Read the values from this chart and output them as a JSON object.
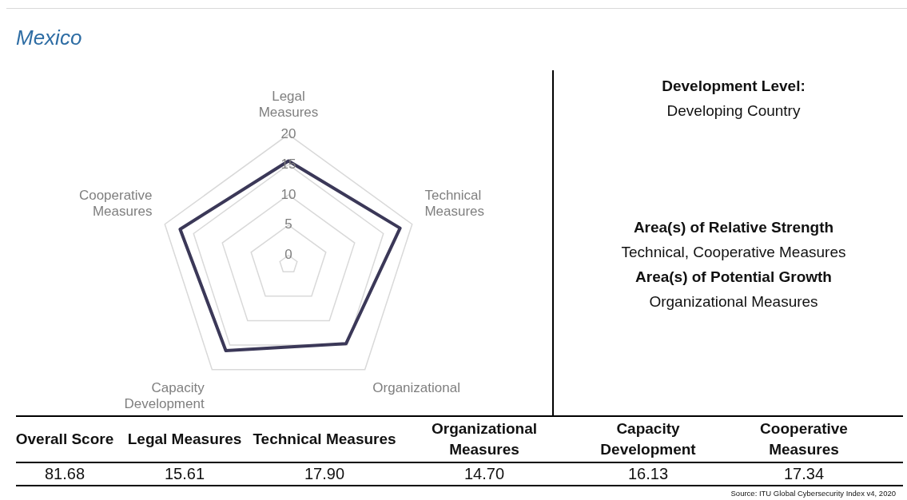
{
  "chart_data": {
    "type": "radar",
    "title": "Mexico",
    "categories": [
      "Legal Measures",
      "Technical Measures",
      "Organizational",
      "Capacity Development",
      "Cooperative Measures"
    ],
    "series": [
      {
        "color": "#3b3858",
        "values": [
          15.61,
          17.9,
          14.7,
          16.13,
          17.34
        ]
      }
    ],
    "value_labels": [
      "15.61",
      "17.90",
      "14.70",
      "16.13",
      "17.34"
    ],
    "ylim": [
      -1.5,
      20
    ],
    "yticks": [
      0,
      5,
      10,
      15,
      20
    ],
    "grid": true,
    "legend": false,
    "marker": "none",
    "annotations": [
      "Development Level:",
      "Developing Country",
      "Area(s) of Relative Strength",
      "Technical, Cooperative Measures",
      "Area(s) of Potential Growth",
      "Organizational Measures",
      "Overall Score",
      "81.68",
      "Legal Measures",
      "Technical Measures",
      "Organizational Measures",
      "Capacity Development",
      "Cooperative Measures",
      "Source: ITU Global Cybersecurity Index v4, 2020"
    ]
  }
}
